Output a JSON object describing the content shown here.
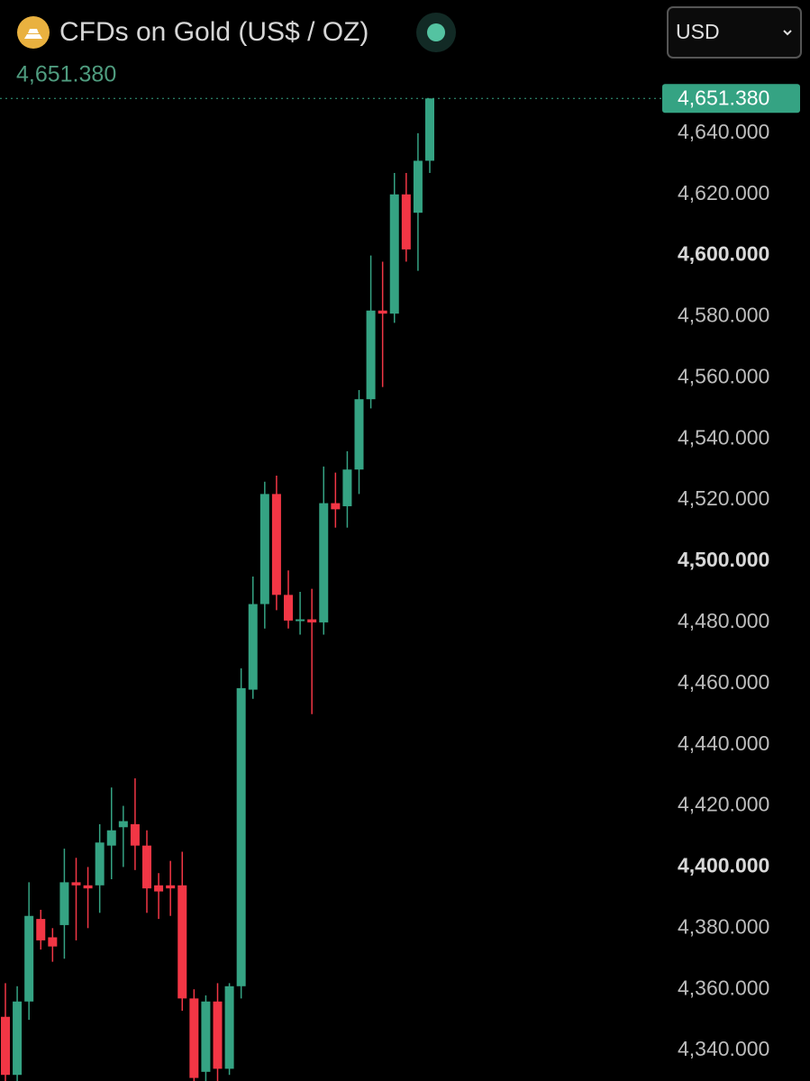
{
  "chart_data": {
    "type": "candlestick",
    "title": "CFDs on Gold (US$ / OZ)",
    "currency": "USD",
    "last_price": {
      "value": 4651.38,
      "label": "4,651.380"
    },
    "up_color": "#35a383",
    "down_color": "#f23645",
    "open": [
      4351,
      4332,
      4356,
      4383,
      4377,
      4381,
      4395,
      4394,
      4394,
      4407,
      4413,
      4414,
      4407,
      4394,
      4394,
      4394,
      4357,
      4333,
      4356,
      4334,
      4361,
      4458,
      4486,
      4522,
      4489,
      4480.5,
      4481,
      4480,
      4519,
      4518,
      4530,
      4553,
      4582,
      4581,
      4620,
      4614,
      4631
    ],
    "high": [
      4362,
      4361,
      4395,
      4386,
      4380,
      4406,
      4403,
      4400,
      4414,
      4426,
      4420,
      4429,
      4412,
      4398,
      4402,
      4405,
      4360,
      4358,
      4362,
      4362,
      4465,
      4495,
      4526,
      4528,
      4497,
      4490,
      4491,
      4531,
      4529,
      4536,
      4556,
      4600,
      4598,
      4627,
      4627,
      4640,
      4651.38
    ],
    "low": [
      4330,
      4330,
      4350,
      4373,
      4369,
      4370,
      4376,
      4380,
      4385,
      4396,
      4400,
      4399,
      4385,
      4383,
      4384,
      4353,
      4330,
      4330,
      4330,
      4332,
      4357,
      4455,
      4478,
      4484,
      4478,
      4476,
      4450,
      4476,
      4511,
      4511,
      4522,
      4550,
      4557,
      4578,
      4598,
      4595,
      4627
    ],
    "close": [
      4332,
      4356,
      4384,
      4376,
      4374,
      4395,
      4394,
      4393,
      4408,
      4412,
      4415,
      4407,
      4393,
      4392,
      4393,
      4357,
      4331,
      4356,
      4334,
      4361,
      4458.5,
      4486,
      4522,
      4489,
      4480.6,
      4481,
      4480,
      4519,
      4517,
      4530,
      4553,
      4582,
      4581,
      4620,
      4602,
      4631,
      4651.38
    ],
    "ylim": [
      4330,
      4655
    ],
    "yticks": [
      {
        "value": 4340,
        "label": "4,340.000"
      },
      {
        "value": 4360,
        "label": "4,360.000"
      },
      {
        "value": 4380,
        "label": "4,380.000"
      },
      {
        "value": 4400,
        "label": "4,400.000"
      },
      {
        "value": 4420,
        "label": "4,420.000"
      },
      {
        "value": 4440,
        "label": "4,440.000"
      },
      {
        "value": 4460,
        "label": "4,460.000"
      },
      {
        "value": 4480,
        "label": "4,480.000"
      },
      {
        "value": 4500,
        "label": "4,500.000"
      },
      {
        "value": 4520,
        "label": "4,520.000"
      },
      {
        "value": 4540,
        "label": "4,540.000"
      },
      {
        "value": 4560,
        "label": "4,560.000"
      },
      {
        "value": 4580,
        "label": "4,580.000"
      },
      {
        "value": 4600,
        "label": "4,600.000"
      },
      {
        "value": 4620,
        "label": "4,620.000"
      },
      {
        "value": 4640,
        "label": "4,640.000"
      }
    ]
  }
}
